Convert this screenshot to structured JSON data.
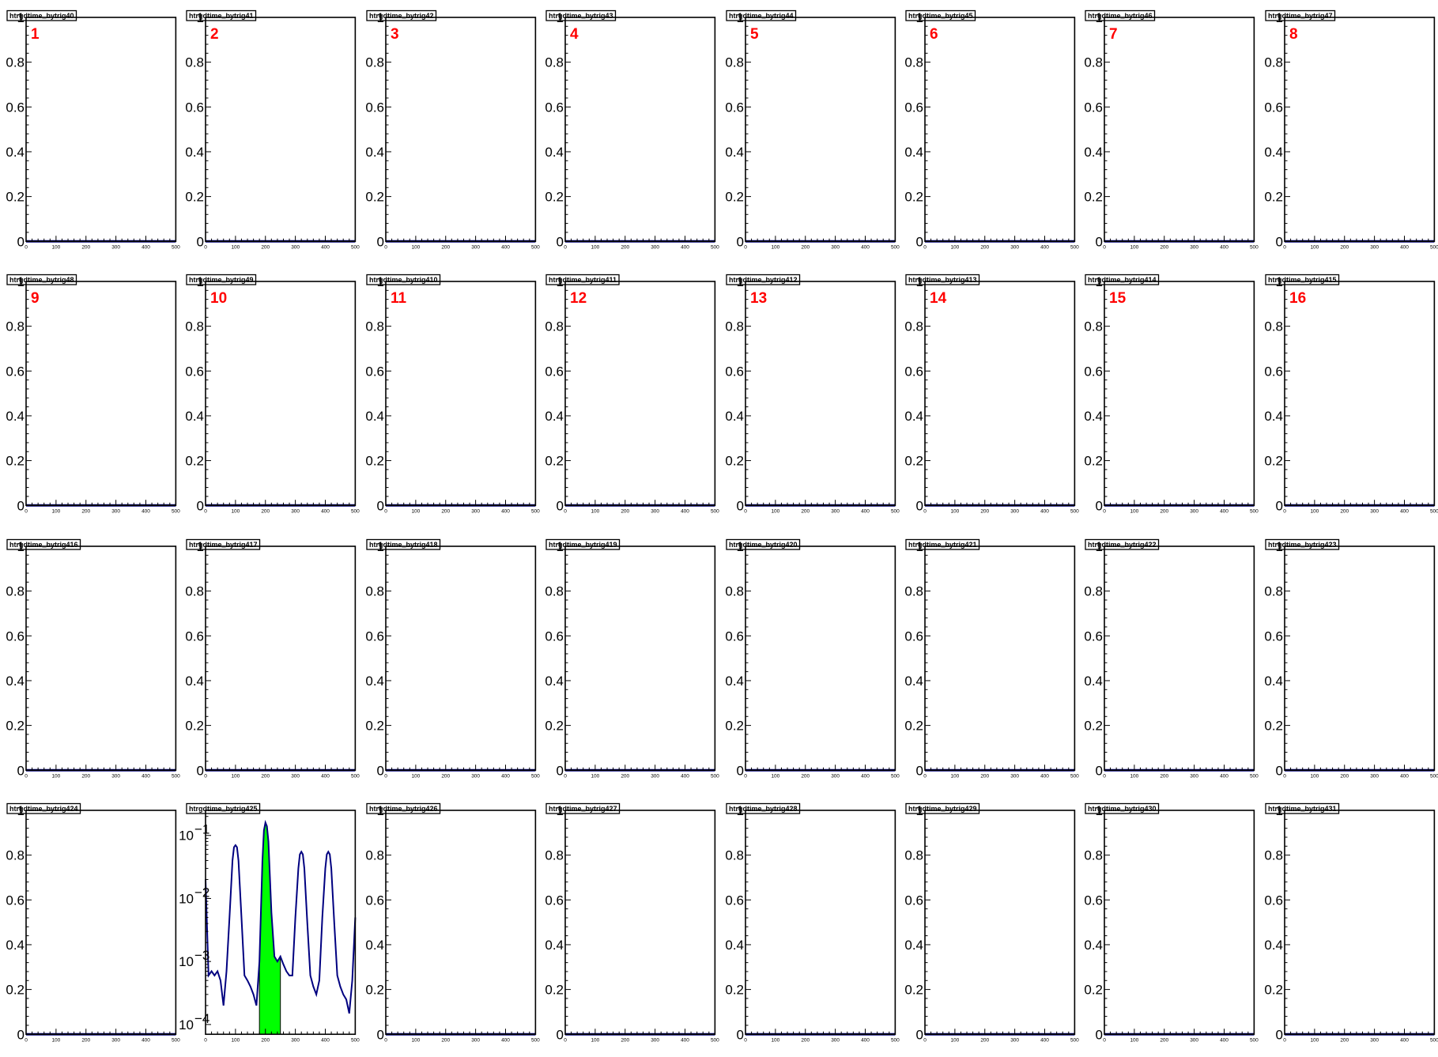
{
  "colors": {
    "frame": "#000000",
    "histogram_line": "#000080",
    "highlight_fill": "#00ff00",
    "pad_number": "#ff0000",
    "background": "#ffffff"
  },
  "layout_grid": {
    "columns": 8,
    "rows": 4
  },
  "chart_data": [
    {
      "type": "line",
      "title": "htrgdtime_bytrig40",
      "pad_number": "1",
      "xlim": [
        0,
        500
      ],
      "ylim": [
        0,
        1
      ],
      "log_y": false,
      "x": [
        0,
        500
      ],
      "y": [
        0,
        0
      ]
    },
    {
      "type": "line",
      "title": "htrgdtime_bytrig41",
      "pad_number": "2",
      "xlim": [
        0,
        500
      ],
      "ylim": [
        0,
        1
      ],
      "log_y": false,
      "x": [
        0,
        500
      ],
      "y": [
        0,
        0
      ]
    },
    {
      "type": "line",
      "title": "htrgdtime_bytrig42",
      "pad_number": "3",
      "xlim": [
        0,
        500
      ],
      "ylim": [
        0,
        1
      ],
      "log_y": false,
      "x": [
        0,
        500
      ],
      "y": [
        0,
        0
      ]
    },
    {
      "type": "line",
      "title": "htrgdtime_bytrig43",
      "pad_number": "4",
      "xlim": [
        0,
        500
      ],
      "ylim": [
        0,
        1
      ],
      "log_y": false,
      "x": [
        0,
        500
      ],
      "y": [
        0,
        0
      ]
    },
    {
      "type": "line",
      "title": "htrgdtime_bytrig44",
      "pad_number": "5",
      "xlim": [
        0,
        500
      ],
      "ylim": [
        0,
        1
      ],
      "log_y": false,
      "x": [
        0,
        500
      ],
      "y": [
        0,
        0
      ]
    },
    {
      "type": "line",
      "title": "htrgdtime_bytrig45",
      "pad_number": "6",
      "xlim": [
        0,
        500
      ],
      "ylim": [
        0,
        1
      ],
      "log_y": false,
      "x": [
        0,
        500
      ],
      "y": [
        0,
        0
      ]
    },
    {
      "type": "line",
      "title": "htrgdtime_bytrig46",
      "pad_number": "7",
      "xlim": [
        0,
        500
      ],
      "ylim": [
        0,
        1
      ],
      "log_y": false,
      "x": [
        0,
        500
      ],
      "y": [
        0,
        0
      ]
    },
    {
      "type": "line",
      "title": "htrgdtime_bytrig47",
      "pad_number": "8",
      "xlim": [
        0,
        500
      ],
      "ylim": [
        0,
        1
      ],
      "log_y": false,
      "x": [
        0,
        500
      ],
      "y": [
        0,
        0
      ]
    },
    {
      "type": "line",
      "title": "htrgdtime_bytrig48",
      "pad_number": "9",
      "xlim": [
        0,
        500
      ],
      "ylim": [
        0,
        1
      ],
      "log_y": false,
      "x": [
        0,
        500
      ],
      "y": [
        0,
        0
      ]
    },
    {
      "type": "line",
      "title": "htrgdtime_bytrig49",
      "pad_number": "10",
      "xlim": [
        0,
        500
      ],
      "ylim": [
        0,
        1
      ],
      "log_y": false,
      "x": [
        0,
        500
      ],
      "y": [
        0,
        0
      ]
    },
    {
      "type": "line",
      "title": "htrgdtime_bytrig410",
      "pad_number": "11",
      "xlim": [
        0,
        500
      ],
      "ylim": [
        0,
        1
      ],
      "log_y": false,
      "x": [
        0,
        500
      ],
      "y": [
        0,
        0
      ]
    },
    {
      "type": "line",
      "title": "htrgdtime_bytrig411",
      "pad_number": "12",
      "xlim": [
        0,
        500
      ],
      "ylim": [
        0,
        1
      ],
      "log_y": false,
      "x": [
        0,
        500
      ],
      "y": [
        0,
        0
      ]
    },
    {
      "type": "line",
      "title": "htrgdtime_bytrig412",
      "pad_number": "13",
      "xlim": [
        0,
        500
      ],
      "ylim": [
        0,
        1
      ],
      "log_y": false,
      "x": [
        0,
        500
      ],
      "y": [
        0,
        0
      ]
    },
    {
      "type": "line",
      "title": "htrgdtime_bytrig413",
      "pad_number": "14",
      "xlim": [
        0,
        500
      ],
      "ylim": [
        0,
        1
      ],
      "log_y": false,
      "x": [
        0,
        500
      ],
      "y": [
        0,
        0
      ]
    },
    {
      "type": "line",
      "title": "htrgdtime_bytrig414",
      "pad_number": "15",
      "xlim": [
        0,
        500
      ],
      "ylim": [
        0,
        1
      ],
      "log_y": false,
      "x": [
        0,
        500
      ],
      "y": [
        0,
        0
      ]
    },
    {
      "type": "line",
      "title": "htrgdtime_bytrig415",
      "pad_number": "16",
      "xlim": [
        0,
        500
      ],
      "ylim": [
        0,
        1
      ],
      "log_y": false,
      "x": [
        0,
        500
      ],
      "y": [
        0,
        0
      ]
    },
    {
      "type": "line",
      "title": "htrgdtime_bytrig416",
      "pad_number": "",
      "xlim": [
        0,
        500
      ],
      "ylim": [
        0,
        1
      ],
      "log_y": false,
      "x": [
        0,
        500
      ],
      "y": [
        0,
        0
      ]
    },
    {
      "type": "line",
      "title": "htrgdtime_bytrig417",
      "pad_number": "",
      "xlim": [
        0,
        500
      ],
      "ylim": [
        0,
        1
      ],
      "log_y": false,
      "x": [
        0,
        500
      ],
      "y": [
        0,
        0
      ]
    },
    {
      "type": "line",
      "title": "htrgdtime_bytrig418",
      "pad_number": "",
      "xlim": [
        0,
        500
      ],
      "ylim": [
        0,
        1
      ],
      "log_y": false,
      "x": [
        0,
        500
      ],
      "y": [
        0,
        0
      ]
    },
    {
      "type": "line",
      "title": "htrgdtime_bytrig419",
      "pad_number": "",
      "xlim": [
        0,
        500
      ],
      "ylim": [
        0,
        1
      ],
      "log_y": false,
      "x": [
        0,
        500
      ],
      "y": [
        0,
        0
      ]
    },
    {
      "type": "line",
      "title": "htrgdtime_bytrig420",
      "pad_number": "",
      "xlim": [
        0,
        500
      ],
      "ylim": [
        0,
        1
      ],
      "log_y": false,
      "x": [
        0,
        500
      ],
      "y": [
        0,
        0
      ]
    },
    {
      "type": "line",
      "title": "htrgdtime_bytrig421",
      "pad_number": "",
      "xlim": [
        0,
        500
      ],
      "ylim": [
        0,
        1
      ],
      "log_y": false,
      "x": [
        0,
        500
      ],
      "y": [
        0,
        0
      ]
    },
    {
      "type": "line",
      "title": "htrgdtime_bytrig422",
      "pad_number": "",
      "xlim": [
        0,
        500
      ],
      "ylim": [
        0,
        1
      ],
      "log_y": false,
      "x": [
        0,
        500
      ],
      "y": [
        0,
        0
      ]
    },
    {
      "type": "line",
      "title": "htrgdtime_bytrig423",
      "pad_number": "",
      "xlim": [
        0,
        500
      ],
      "ylim": [
        0,
        1
      ],
      "log_y": false,
      "x": [
        0,
        500
      ],
      "y": [
        0,
        0
      ]
    },
    {
      "type": "line",
      "title": "htrgdtime_bytrig424",
      "pad_number": "",
      "xlim": [
        0,
        500
      ],
      "ylim": [
        0,
        1
      ],
      "log_y": false,
      "x": [
        0,
        500
      ],
      "y": [
        0,
        0
      ]
    },
    {
      "type": "line",
      "title": "htrgdtime_bytrig425",
      "pad_number": "",
      "xlim": [
        0,
        500
      ],
      "ylim": [
        7e-05,
        0.25
      ],
      "log_y": true,
      "highlight_range": [
        180,
        250
      ],
      "x": [
        0,
        10,
        20,
        30,
        40,
        50,
        60,
        70,
        80,
        90,
        95,
        100,
        105,
        110,
        120,
        130,
        140,
        150,
        160,
        170,
        180,
        190,
        195,
        200,
        205,
        210,
        220,
        230,
        240,
        250,
        260,
        270,
        280,
        290,
        300,
        310,
        315,
        320,
        325,
        330,
        340,
        350,
        360,
        370,
        380,
        390,
        400,
        405,
        410,
        415,
        420,
        430,
        440,
        450,
        460,
        470,
        480,
        490,
        500
      ],
      "y": [
        0.02,
        0.0006,
        0.0007,
        0.0006,
        0.0007,
        0.0005,
        0.0002,
        0.0007,
        0.005,
        0.04,
        0.065,
        0.07,
        0.065,
        0.04,
        0.005,
        0.0006,
        0.0005,
        0.0004,
        0.0003,
        0.0002,
        0.001,
        0.04,
        0.12,
        0.16,
        0.14,
        0.08,
        0.006,
        0.0012,
        0.001,
        0.0012,
        0.0009,
        0.0007,
        0.0006,
        0.0006,
        0.005,
        0.03,
        0.05,
        0.055,
        0.05,
        0.03,
        0.004,
        0.0006,
        0.0004,
        0.0003,
        0.0005,
        0.005,
        0.03,
        0.05,
        0.055,
        0.05,
        0.03,
        0.004,
        0.0006,
        0.0004,
        0.0003,
        0.00025,
        0.00015,
        0.0005,
        0.005
      ]
    },
    {
      "type": "line",
      "title": "htrgdtime_bytrig426",
      "pad_number": "",
      "xlim": [
        0,
        500
      ],
      "ylim": [
        0,
        1
      ],
      "log_y": false,
      "x": [
        0,
        500
      ],
      "y": [
        0,
        0
      ]
    },
    {
      "type": "line",
      "title": "htrgdtime_bytrig427",
      "pad_number": "",
      "xlim": [
        0,
        500
      ],
      "ylim": [
        0,
        1
      ],
      "log_y": false,
      "x": [
        0,
        500
      ],
      "y": [
        0,
        0
      ]
    },
    {
      "type": "line",
      "title": "htrgdtime_bytrig428",
      "pad_number": "",
      "xlim": [
        0,
        500
      ],
      "ylim": [
        0,
        1
      ],
      "log_y": false,
      "x": [
        0,
        500
      ],
      "y": [
        0,
        0
      ]
    },
    {
      "type": "line",
      "title": "htrgdtime_bytrig429",
      "pad_number": "",
      "xlim": [
        0,
        500
      ],
      "ylim": [
        0,
        1
      ],
      "log_y": false,
      "x": [
        0,
        500
      ],
      "y": [
        0,
        0
      ]
    },
    {
      "type": "line",
      "title": "htrgdtime_bytrig430",
      "pad_number": "",
      "xlim": [
        0,
        500
      ],
      "ylim": [
        0,
        1
      ],
      "log_y": false,
      "x": [
        0,
        500
      ],
      "y": [
        0,
        0
      ]
    },
    {
      "type": "line",
      "title": "htrgdtime_bytrig431",
      "pad_number": "",
      "xlim": [
        0,
        500
      ],
      "ylim": [
        0,
        1
      ],
      "log_y": false,
      "x": [
        0,
        500
      ],
      "y": [
        0,
        0
      ]
    }
  ],
  "axes": {
    "linear_y_ticks": [
      "0",
      "0.2",
      "0.4",
      "0.6",
      "0.8",
      "1"
    ],
    "log_y_ticks": [
      {
        "base": "10",
        "exp": "−1"
      },
      {
        "base": "10",
        "exp": "−2"
      },
      {
        "base": "10",
        "exp": "−3"
      },
      {
        "base": "10",
        "exp": "−4"
      }
    ],
    "x_ticks": [
      "0",
      "100",
      "200",
      "300",
      "400",
      "500"
    ]
  }
}
